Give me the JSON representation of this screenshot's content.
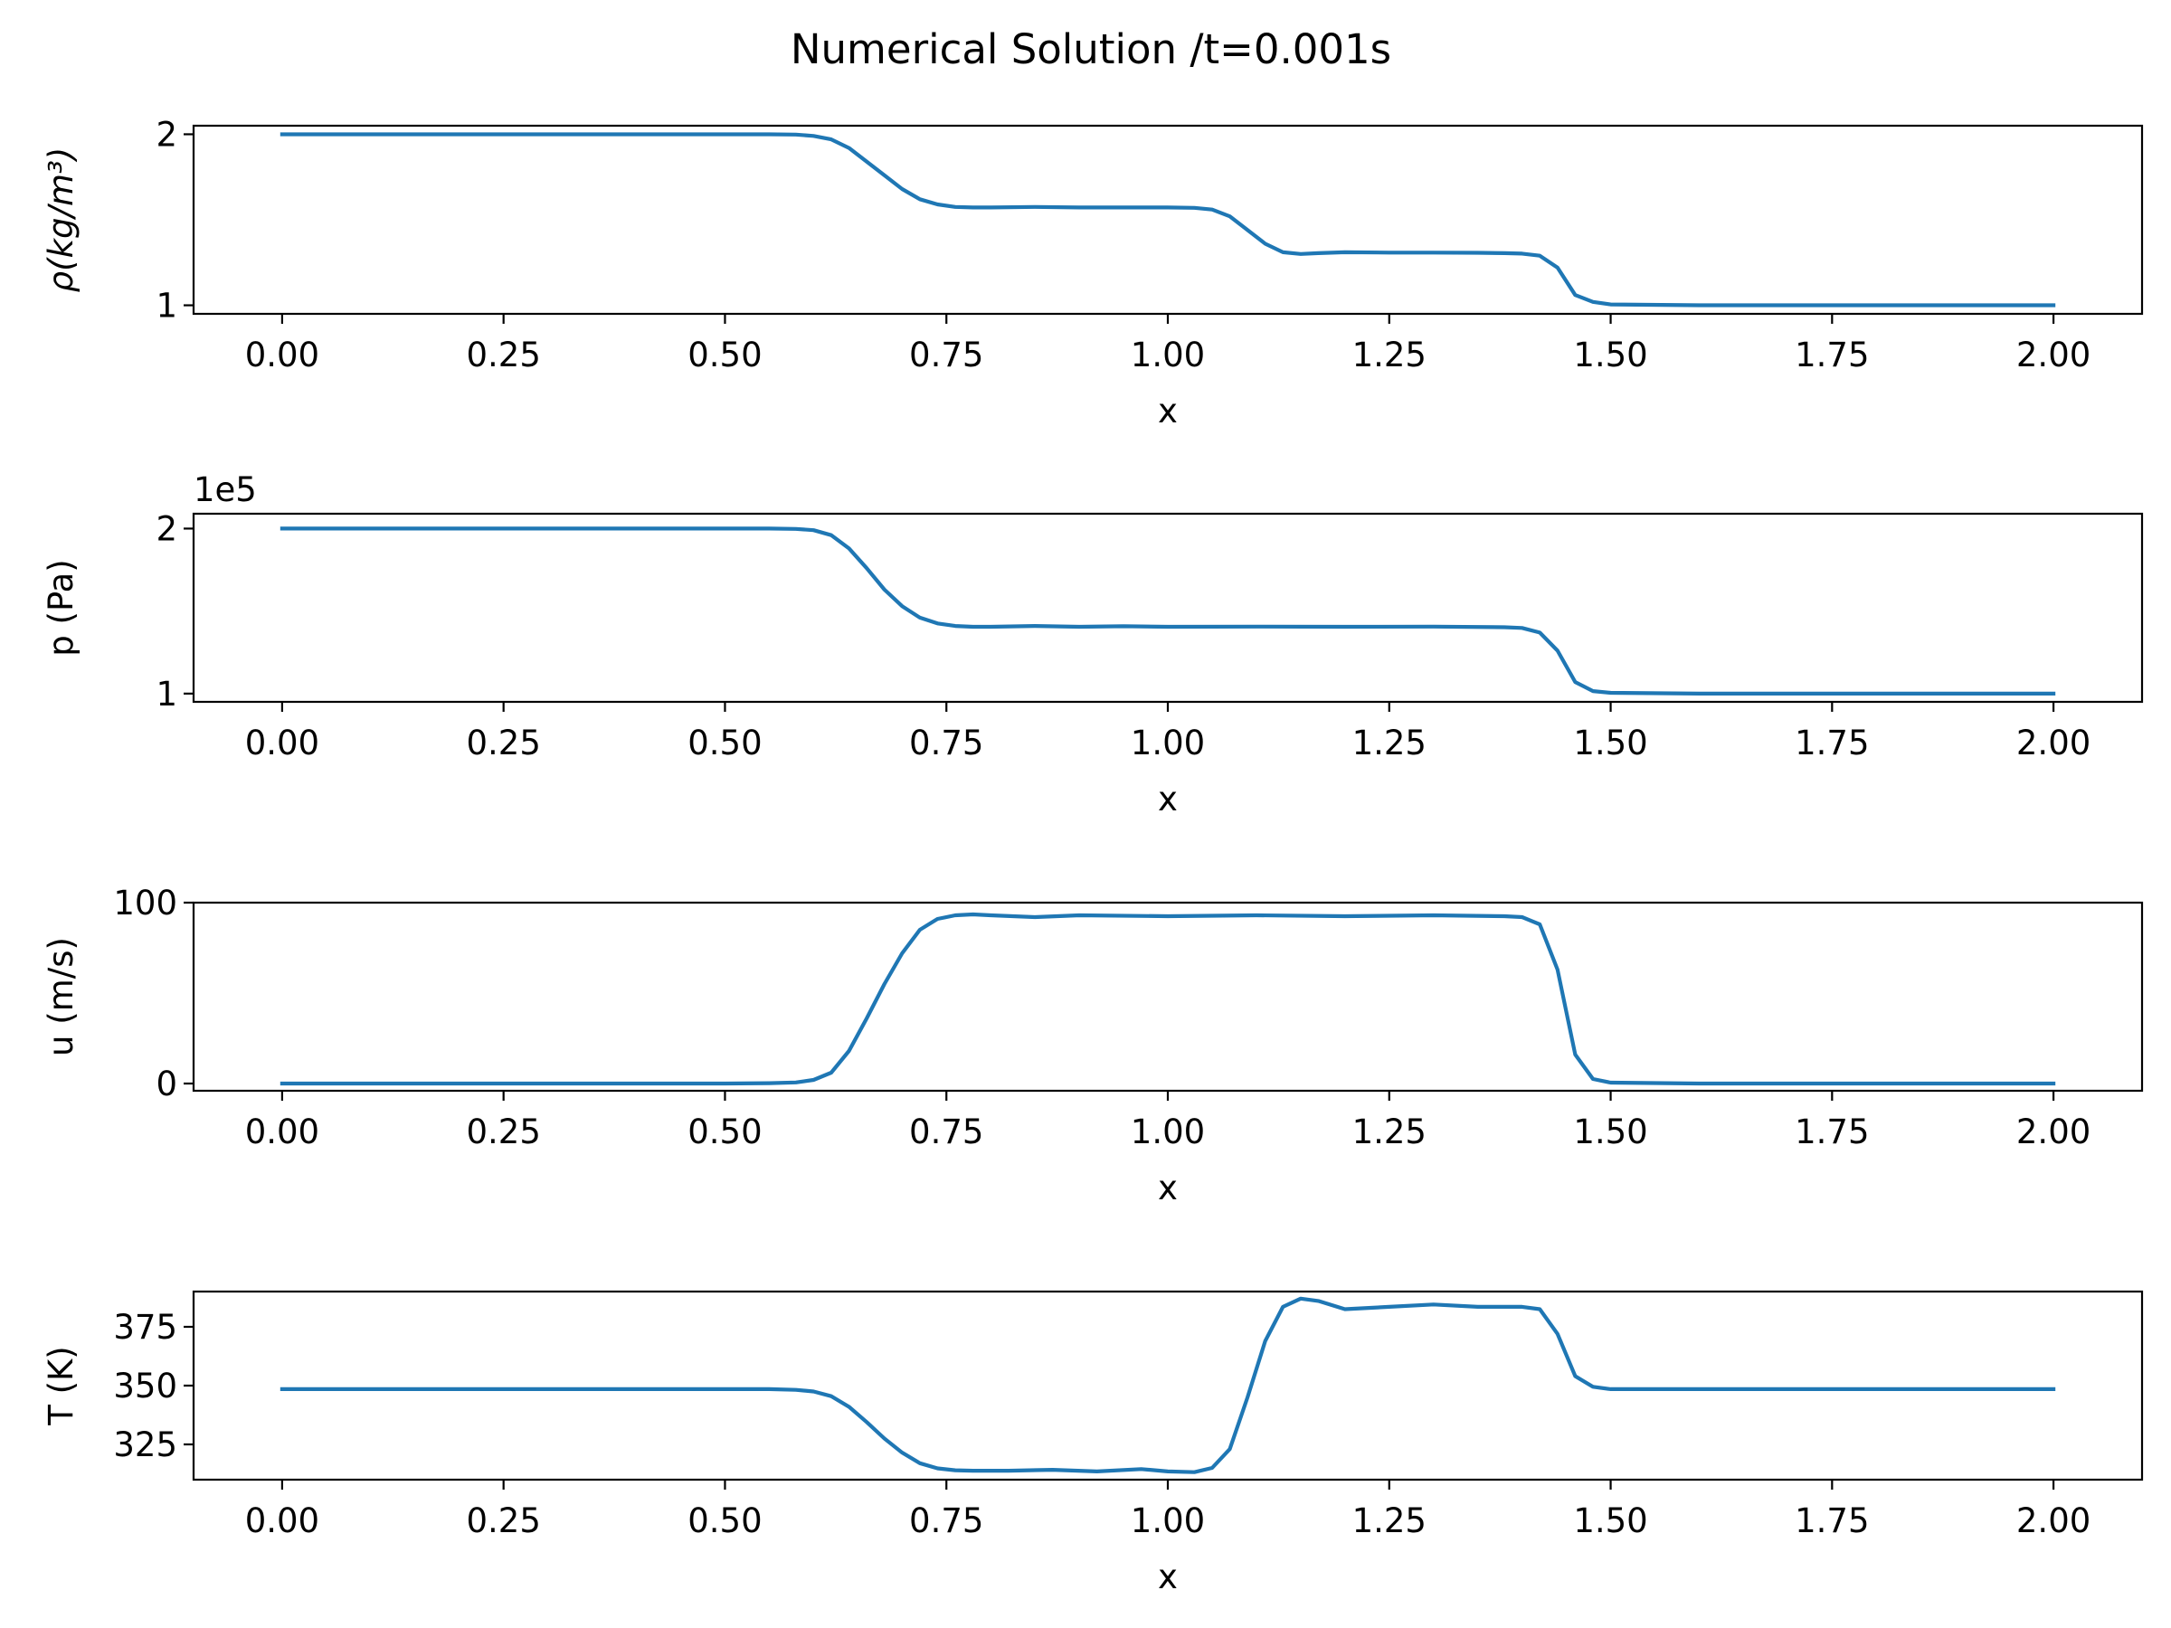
{
  "chart_data": {
    "title": "Numerical Solution /t=0.001s",
    "line_color": "#1f77b4",
    "panels": [
      {
        "type": "line",
        "ylabel": "ρ(kg/m³)",
        "xlabel": "x",
        "xlim": [
          -0.1,
          2.1
        ],
        "ylim": [
          0.95,
          2.05
        ],
        "xticks": [
          0.0,
          0.25,
          0.5,
          0.75,
          1.0,
          1.25,
          1.5,
          1.75,
          2.0
        ],
        "xtick_labels": [
          "0.00",
          "0.25",
          "0.50",
          "0.75",
          "1.00",
          "1.25",
          "1.50",
          "1.75",
          "2.00"
        ],
        "yticks": [
          1,
          2
        ],
        "ytick_labels": [
          "1",
          "2"
        ],
        "offset_text": "",
        "series": [
          {
            "x": [
              0.0,
              0.5,
              0.55,
              0.58,
              0.6,
              0.62,
              0.64,
              0.66,
              0.68,
              0.7,
              0.72,
              0.74,
              0.76,
              0.78,
              0.8,
              0.85,
              0.9,
              1.0,
              1.03,
              1.05,
              1.07,
              1.09,
              1.11,
              1.13,
              1.15,
              1.17,
              1.2,
              1.25,
              1.3,
              1.35,
              1.38,
              1.4,
              1.42,
              1.44,
              1.46,
              1.48,
              1.5,
              1.6,
              1.75,
              2.0
            ],
            "y": [
              2.0,
              2.0,
              2.0,
              1.998,
              1.99,
              1.97,
              1.92,
              1.84,
              1.76,
              1.68,
              1.62,
              1.59,
              1.575,
              1.572,
              1.572,
              1.575,
              1.572,
              1.572,
              1.57,
              1.56,
              1.52,
              1.44,
              1.36,
              1.31,
              1.3,
              1.305,
              1.31,
              1.308,
              1.308,
              1.307,
              1.305,
              1.302,
              1.29,
              1.22,
              1.06,
              1.02,
              1.005,
              1.0,
              1.0,
              1.0
            ]
          }
        ]
      },
      {
        "type": "line",
        "ylabel": "p (Pa)",
        "xlabel": "x",
        "xlim": [
          -0.1,
          2.1
        ],
        "ylim": [
          95000,
          209000
        ],
        "xticks": [
          0.0,
          0.25,
          0.5,
          0.75,
          1.0,
          1.25,
          1.5,
          1.75,
          2.0
        ],
        "xtick_labels": [
          "0.00",
          "0.25",
          "0.50",
          "0.75",
          "1.00",
          "1.25",
          "1.50",
          "1.75",
          "2.00"
        ],
        "yticks": [
          100000,
          200000
        ],
        "ytick_labels": [
          "1",
          "2"
        ],
        "offset_text": "1e5",
        "series": [
          {
            "x": [
              0.0,
              0.5,
              0.55,
              0.58,
              0.6,
              0.62,
              0.64,
              0.66,
              0.68,
              0.7,
              0.72,
              0.74,
              0.76,
              0.78,
              0.8,
              0.85,
              0.9,
              0.95,
              1.0,
              1.1,
              1.2,
              1.3,
              1.38,
              1.4,
              1.42,
              1.44,
              1.46,
              1.48,
              1.5,
              1.6,
              1.75,
              2.0
            ],
            "y": [
              200000,
              200000,
              200000,
              199800,
              199000,
              196000,
              188000,
              176000,
              163000,
              153000,
              146000,
              142500,
              141000,
              140500,
              140500,
              141000,
              140500,
              140800,
              140500,
              140600,
              140500,
              140600,
              140200,
              139800,
              137000,
              126000,
              107000,
              101500,
              100500,
              100000,
              100000,
              100000
            ]
          }
        ]
      },
      {
        "type": "line",
        "ylabel": "u (m/s)",
        "xlabel": "x",
        "xlim": [
          -0.1,
          2.1
        ],
        "ylim": [
          -4,
          100
        ],
        "xticks": [
          0.0,
          0.25,
          0.5,
          0.75,
          1.0,
          1.25,
          1.5,
          1.75,
          2.0
        ],
        "xtick_labels": [
          "0.00",
          "0.25",
          "0.50",
          "0.75",
          "1.00",
          "1.25",
          "1.50",
          "1.75",
          "2.00"
        ],
        "yticks": [
          0,
          100
        ],
        "ytick_labels": [
          "0",
          "100"
        ],
        "offset_text": "",
        "series": [
          {
            "x": [
              0.0,
              0.5,
              0.55,
              0.58,
              0.6,
              0.62,
              0.64,
              0.66,
              0.68,
              0.7,
              0.72,
              0.74,
              0.76,
              0.78,
              0.8,
              0.85,
              0.9,
              1.0,
              1.1,
              1.2,
              1.3,
              1.38,
              1.4,
              1.42,
              1.44,
              1.46,
              1.48,
              1.5,
              1.6,
              1.75,
              2.0
            ],
            "y": [
              0.0,
              0.0,
              0.2,
              0.6,
              2.0,
              6.0,
              18.0,
              36.0,
              55.0,
              72.0,
              85.0,
              91.0,
              93.0,
              93.5,
              93.0,
              92.0,
              93.0,
              92.5,
              93.0,
              92.5,
              93.0,
              92.5,
              92.0,
              88.0,
              63.0,
              16.0,
              2.5,
              0.5,
              0.0,
              0.0,
              0.0
            ]
          }
        ]
      },
      {
        "type": "line",
        "ylabel": "T (K)",
        "xlabel": "x",
        "xlim": [
          -0.1,
          2.1
        ],
        "ylim": [
          310,
          390
        ],
        "xticks": [
          0.0,
          0.25,
          0.5,
          0.75,
          1.0,
          1.25,
          1.5,
          1.75,
          2.0
        ],
        "xtick_labels": [
          "0.00",
          "0.25",
          "0.50",
          "0.75",
          "1.00",
          "1.25",
          "1.50",
          "1.75",
          "2.00"
        ],
        "yticks": [
          325,
          350,
          375
        ],
        "ytick_labels": [
          "325",
          "350",
          "375"
        ],
        "offset_text": "",
        "series": [
          {
            "x": [
              0.0,
              0.5,
              0.55,
              0.58,
              0.6,
              0.62,
              0.64,
              0.66,
              0.68,
              0.7,
              0.72,
              0.74,
              0.76,
              0.78,
              0.82,
              0.87,
              0.92,
              0.97,
              1.0,
              1.03,
              1.05,
              1.07,
              1.09,
              1.11,
              1.13,
              1.15,
              1.17,
              1.2,
              1.25,
              1.3,
              1.35,
              1.38,
              1.4,
              1.42,
              1.44,
              1.46,
              1.48,
              1.5,
              1.6,
              1.75,
              2.0
            ],
            "y": [
              348.5,
              348.5,
              348.5,
              348.2,
              347.5,
              345.5,
              341.0,
              334.5,
              327.5,
              321.5,
              317.0,
              314.8,
              314.0,
              313.8,
              313.8,
              314.2,
              313.5,
              314.5,
              313.5,
              313.2,
              315.0,
              323.0,
              345.0,
              369.0,
              383.5,
              387.0,
              386.0,
              382.5,
              383.5,
              384.5,
              383.5,
              383.5,
              383.5,
              382.5,
              372.0,
              354.0,
              349.5,
              348.5,
              348.5,
              348.5,
              348.5
            ]
          }
        ]
      }
    ]
  }
}
